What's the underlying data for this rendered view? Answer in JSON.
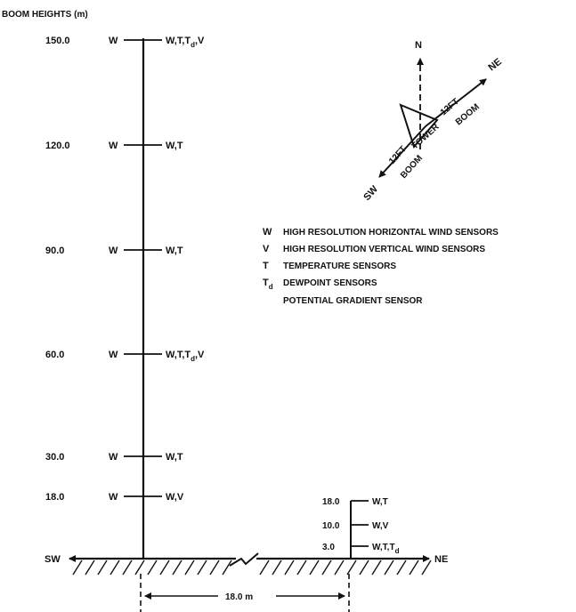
{
  "header": "BOOM HEIGHTS (m)",
  "tower_levels": [
    {
      "height": "150.0",
      "left": "W",
      "right": "W,T,T",
      "sub": "d",
      "tail": ",V"
    },
    {
      "height": "120.0",
      "left": "W",
      "right": "W,T",
      "sub": "",
      "tail": ""
    },
    {
      "height": "90.0",
      "left": "W",
      "right": "W,T",
      "sub": "",
      "tail": ""
    },
    {
      "height": "60.0",
      "left": "W",
      "right": "W,T,T",
      "sub": "d",
      "tail": ",V"
    },
    {
      "height": "30.0",
      "left": "W",
      "right": "W,T",
      "sub": "",
      "tail": ""
    },
    {
      "height": "18.0",
      "left": "W",
      "right": "W,V",
      "sub": "",
      "tail": ""
    }
  ],
  "legend": [
    {
      "key": "W",
      "key_sub": "",
      "text": "HIGH RESOLUTION HORIZONTAL WIND SENSORS"
    },
    {
      "key": "V",
      "key_sub": "",
      "text": "HIGH RESOLUTION VERTICAL WIND SENSORS"
    },
    {
      "key": "T",
      "key_sub": "",
      "text": "TEMPERATURE SENSORS"
    },
    {
      "key": "T",
      "key_sub": "d",
      "text": "DEWPOINT SENSORS"
    },
    {
      "key": "",
      "key_sub": "",
      "text": "POTENTIAL GRADIENT SENSOR"
    }
  ],
  "compass": {
    "north": "N",
    "northeast": "NE",
    "southwest": "SW",
    "boom_ne_length": "12FT",
    "boom_ne_label": "BOOM",
    "boom_sw_length": "12FT",
    "boom_sw_label": "BOOM",
    "tower_label": "TOWER"
  },
  "ground": {
    "left_label": "SW",
    "right_label": "NE",
    "separation": "18.0 m"
  },
  "small_mast": [
    {
      "height": "18.0",
      "right": "W,T",
      "sub": "",
      "tail": ""
    },
    {
      "height": "10.0",
      "right": "W,V",
      "sub": "",
      "tail": ""
    },
    {
      "height": "3.0",
      "right": "W,T,T",
      "sub": "d",
      "tail": ""
    }
  ]
}
